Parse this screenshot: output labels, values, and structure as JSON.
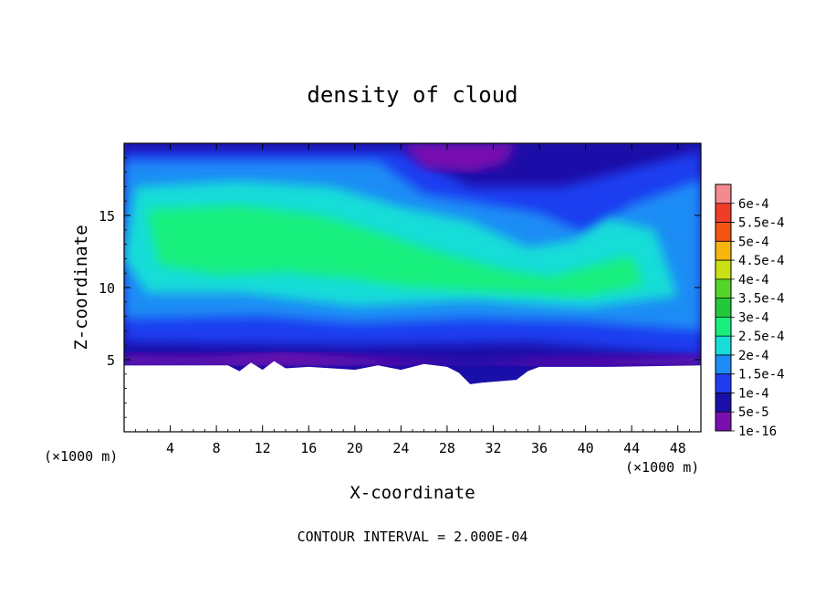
{
  "chart_data": {
    "type": "heatmap",
    "title": "density of cloud",
    "xlabel": "X-coordinate",
    "ylabel": "Z-coordinate",
    "x_unit_left": "(×1000 m)",
    "x_unit_right": "(×1000 m)",
    "xlim": [
      0,
      50
    ],
    "ylim": [
      0,
      20
    ],
    "x_ticks": [
      4,
      8,
      12,
      16,
      20,
      24,
      28,
      32,
      36,
      40,
      44,
      48
    ],
    "y_ticks": [
      5,
      10,
      15
    ],
    "footer": "CONTOUR INTERVAL = 2.000E-04",
    "grid": false,
    "colorbar": {
      "position": "right",
      "levels": [
        {
          "label": "1e-16",
          "color": "#7a0fb0"
        },
        {
          "label": "5e-5",
          "color": "#1a10a8"
        },
        {
          "label": "1e-4",
          "color": "#1f3cf0"
        },
        {
          "label": "1.5e-4",
          "color": "#1e8cf5"
        },
        {
          "label": "2e-4",
          "color": "#18ddd8"
        },
        {
          "label": "2.5e-4",
          "color": "#19ef7c"
        },
        {
          "label": "3e-4",
          "color": "#22c83a"
        },
        {
          "label": "3.5e-4",
          "color": "#55d52a"
        },
        {
          "label": "4e-4",
          "color": "#c9e014"
        },
        {
          "label": "4.5e-4",
          "color": "#f7b50e"
        },
        {
          "label": "5e-4",
          "color": "#f25512"
        },
        {
          "label": "5.5e-4",
          "color": "#f03d29"
        },
        {
          "label": "6e-4",
          "color": "#f48a90"
        }
      ]
    },
    "ground_profile_xz": [
      [
        0,
        4.6
      ],
      [
        9,
        4.6
      ],
      [
        10,
        4.2
      ],
      [
        11,
        4.8
      ],
      [
        12,
        4.3
      ],
      [
        13,
        4.9
      ],
      [
        14,
        4.4
      ],
      [
        16,
        4.5
      ],
      [
        20,
        4.3
      ],
      [
        22,
        4.6
      ],
      [
        24,
        4.3
      ],
      [
        26,
        4.7
      ],
      [
        28,
        4.5
      ],
      [
        29,
        4.1
      ],
      [
        30,
        3.3
      ],
      [
        31,
        3.4
      ],
      [
        34,
        3.6
      ],
      [
        35,
        4.2
      ],
      [
        36,
        4.5
      ],
      [
        42,
        4.5
      ],
      [
        50,
        4.6
      ]
    ],
    "regions": [
      {
        "level": 1,
        "points": [
          [
            0,
            20
          ],
          [
            50,
            20
          ],
          [
            50,
            4.6
          ],
          [
            0,
            4.6
          ]
        ]
      },
      {
        "level": 2,
        "points": [
          [
            0,
            19.5
          ],
          [
            24,
            19.5
          ],
          [
            30,
            17
          ],
          [
            38,
            17
          ],
          [
            50,
            19.5
          ],
          [
            50,
            5.3
          ],
          [
            35,
            6.2
          ],
          [
            20,
            6.0
          ],
          [
            0,
            6.2
          ]
        ]
      },
      {
        "level": 3,
        "points": [
          [
            0,
            18.8
          ],
          [
            22,
            18.8
          ],
          [
            26,
            16.5
          ],
          [
            30,
            16.0
          ],
          [
            36,
            15.2
          ],
          [
            40,
            13.8
          ],
          [
            44,
            15.8
          ],
          [
            50,
            17.5
          ],
          [
            50,
            7.0
          ],
          [
            40,
            7.6
          ],
          [
            30,
            7.8
          ],
          [
            20,
            7.5
          ],
          [
            12,
            8.0
          ],
          [
            0,
            7.8
          ]
        ]
      },
      {
        "level": 4,
        "points": [
          [
            1,
            17.0
          ],
          [
            10,
            17.4
          ],
          [
            18,
            17.0
          ],
          [
            24,
            15.6
          ],
          [
            30,
            14.6
          ],
          [
            35,
            12.8
          ],
          [
            39,
            13.3
          ],
          [
            42,
            14.8
          ],
          [
            46,
            14.0
          ],
          [
            48,
            9.4
          ],
          [
            40,
            8.6
          ],
          [
            30,
            9.1
          ],
          [
            20,
            8.7
          ],
          [
            10,
            9.6
          ],
          [
            2,
            9.6
          ],
          [
            0,
            12.0
          ]
        ]
      },
      {
        "level": 5,
        "points": [
          [
            2,
            15.4
          ],
          [
            10,
            15.7
          ],
          [
            17,
            15.0
          ],
          [
            22,
            13.8
          ],
          [
            27,
            12.5
          ],
          [
            33,
            11.2
          ],
          [
            37,
            10.7
          ],
          [
            40,
            11.4
          ],
          [
            44,
            12.2
          ],
          [
            45,
            10.2
          ],
          [
            40,
            9.4
          ],
          [
            30,
            9.8
          ],
          [
            24,
            10.1
          ],
          [
            20,
            10.6
          ],
          [
            14,
            11.1
          ],
          [
            8,
            10.9
          ],
          [
            3,
            11.6
          ]
        ]
      },
      {
        "level": 0,
        "points": [
          [
            24,
            20
          ],
          [
            34,
            20
          ],
          [
            33,
            18.6
          ],
          [
            30,
            18.0
          ],
          [
            26,
            18.3
          ]
        ]
      },
      {
        "level": 0,
        "points": [
          [
            0,
            4.6
          ],
          [
            50,
            4.6
          ],
          [
            50,
            5.2
          ],
          [
            42,
            5.1
          ],
          [
            36,
            5.0
          ],
          [
            30,
            4.7
          ],
          [
            24,
            5.0
          ],
          [
            14,
            5.5
          ],
          [
            6,
            5.2
          ],
          [
            0,
            5.3
          ]
        ]
      }
    ]
  }
}
